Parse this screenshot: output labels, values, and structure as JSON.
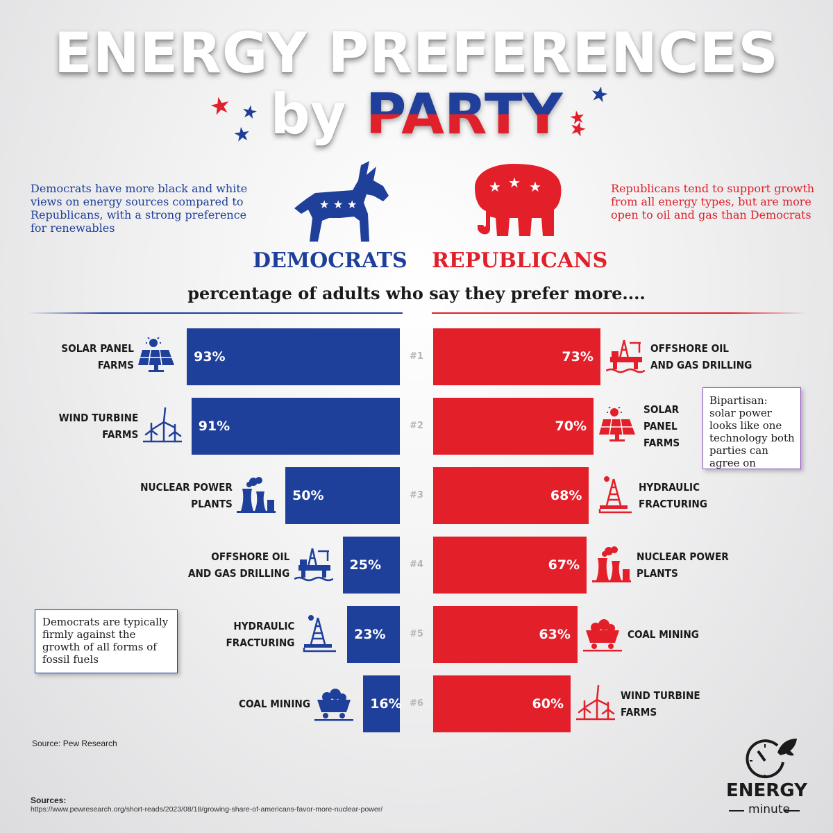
{
  "title_line1": "ENERGY PREFERENCES",
  "title_by": "by",
  "title_party": "PARTY",
  "dem_description": "Democrats have more black and white views on energy sources compared to Republicans, with a strong preference for renewables",
  "rep_description": "Republicans tend to support growth from all energy types, but are more open to oil and gas than Democrats",
  "dem_heading": "DEMOCRATS",
  "rep_heading": "REPUBLICANS",
  "subtitle": "percentage of adults who say they prefer more....",
  "colors": {
    "democrat_blue": "#1e3f9a",
    "republican_red": "#e3202a",
    "note_border_purple": "#8a4fbf"
  },
  "chart_data": [
    {
      "type": "bar",
      "series": [
        {
          "name": "DEMOCRATS",
          "ranks": [
            "#1",
            "#2",
            "#3",
            "#4",
            "#5",
            "#6"
          ],
          "categories": [
            "SOLAR PANEL FARMS",
            "WIND TURBINE FARMS",
            "NUCLEAR POWER PLANTS",
            "OFFSHORE OIL AND GAS DRILLING",
            "HYDRAULIC FRACTURING",
            "COAL MINING"
          ],
          "category_lines": [
            [
              "SOLAR PANEL",
              "FARMS"
            ],
            [
              "WIND TURBINE",
              "FARMS"
            ],
            [
              "NUCLEAR POWER",
              "PLANTS"
            ],
            [
              "OFFSHORE OIL",
              "AND GAS DRILLING"
            ],
            [
              "HYDRAULIC",
              "FRACTURING"
            ],
            [
              "COAL MINING"
            ]
          ],
          "icons": [
            "solar-panel-icon",
            "wind-turbine-icon",
            "nuclear-plant-icon",
            "oil-rig-icon",
            "fracking-derrick-icon",
            "coal-cart-icon"
          ],
          "values": [
            93,
            91,
            50,
            25,
            23,
            16
          ],
          "value_labels": [
            "93%",
            "91%",
            "50%",
            "25%",
            "23%",
            "16%"
          ]
        }
      ],
      "orientation": "horizontal",
      "xlim": [
        0,
        100
      ]
    },
    {
      "type": "bar",
      "series": [
        {
          "name": "REPUBLICANS",
          "ranks": [
            "#1",
            "#2",
            "#3",
            "#4",
            "#5",
            "#6"
          ],
          "categories": [
            "OFFSHORE OIL AND GAS DRILLING",
            "SOLAR PANEL FARMS",
            "HYDRAULIC FRACTURING",
            "NUCLEAR POWER PLANTS",
            "COAL MINING",
            "WIND TURBINE FARMS"
          ],
          "category_lines": [
            [
              "OFFSHORE OIL",
              "AND GAS DRILLING"
            ],
            [
              "SOLAR",
              "PANEL",
              "FARMS"
            ],
            [
              "HYDRAULIC",
              "FRACTURING"
            ],
            [
              "NUCLEAR POWER",
              "PLANTS"
            ],
            [
              "COAL MINING"
            ],
            [
              "WIND TURBINE",
              "FARMS"
            ]
          ],
          "icons": [
            "oil-rig-icon",
            "solar-panel-icon",
            "fracking-derrick-icon",
            "nuclear-plant-icon",
            "coal-cart-icon",
            "wind-turbine-icon"
          ],
          "values": [
            73,
            70,
            68,
            67,
            63,
            60
          ],
          "value_labels": [
            "73%",
            "70%",
            "68%",
            "67%",
            "63%",
            "60%"
          ]
        }
      ],
      "orientation": "horizontal",
      "xlim": [
        0,
        100
      ]
    }
  ],
  "notes": {
    "dem_note": "Democrats are typically firmly against the growth of all forms of fossil fuels",
    "rep_note": "Bipartisan: solar power looks like one technology both parties can agree on"
  },
  "source_line": "Source: Pew Research",
  "sources_heading": "Sources:",
  "sources_url": "https://www.pewresearch.org/short-reads/2023/08/18/growing-share-of-americans-favor-more-nuclear-power/",
  "logo": {
    "line1": "ENERGY",
    "line2": "minute"
  }
}
